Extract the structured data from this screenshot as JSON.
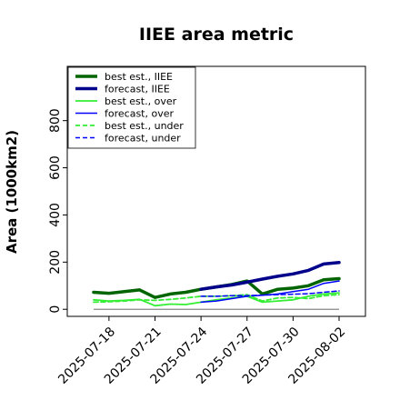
{
  "chart_data": {
    "type": "line",
    "title": "IIEE area metric",
    "xlabel": "",
    "ylabel": "Area (1000km2)",
    "ylim": [
      -30,
      1030
    ],
    "yticks": [
      0,
      200,
      400,
      600,
      800
    ],
    "x": [
      "2025-07-17",
      "2025-07-18",
      "2025-07-19",
      "2025-07-20",
      "2025-07-21",
      "2025-07-22",
      "2025-07-23",
      "2025-07-24",
      "2025-07-25",
      "2025-07-26",
      "2025-07-27",
      "2025-07-28",
      "2025-07-29",
      "2025-07-30",
      "2025-07-31",
      "2025-08-01",
      "2025-08-02"
    ],
    "xticks": [
      {
        "label": "2025-07-18",
        "color": "#000000"
      },
      {
        "label": "2025-07-21",
        "color": "#000000"
      },
      {
        "label": "2025-07-24",
        "color": "#2a8a2a"
      },
      {
        "label": "2025-07-27",
        "color": "#000000"
      },
      {
        "label": "2025-07-30",
        "color": "#000000"
      },
      {
        "label": "2025-08-02",
        "color": "#000000"
      }
    ],
    "zero_line": true,
    "legend_position": "top-left",
    "series": [
      {
        "name": "best est., IIEE",
        "color": "#006400",
        "style": "solid",
        "width": 3.5,
        "x": [
          "2025-07-17",
          "2025-07-18",
          "2025-07-19",
          "2025-07-20",
          "2025-07-21",
          "2025-07-22",
          "2025-07-23",
          "2025-07-24",
          "2025-07-25",
          "2025-07-26",
          "2025-07-27",
          "2025-07-28",
          "2025-07-29",
          "2025-07-30",
          "2025-07-31",
          "2025-08-01",
          "2025-08-02"
        ],
        "values": [
          72,
          68,
          75,
          82,
          50,
          65,
          72,
          85,
          95,
          105,
          120,
          65,
          85,
          90,
          100,
          125,
          130
        ]
      },
      {
        "name": "forecast, IIEE",
        "color": "#00008b",
        "style": "solid",
        "width": 3.5,
        "x": [
          "2025-07-24",
          "2025-07-25",
          "2025-07-26",
          "2025-07-27",
          "2025-07-28",
          "2025-07-29",
          "2025-07-30",
          "2025-07-31",
          "2025-08-01",
          "2025-08-02"
        ],
        "values": [
          85,
          95,
          103,
          115,
          128,
          140,
          150,
          165,
          192,
          198
        ]
      },
      {
        "name": "best est., over",
        "color": "#33ee33",
        "style": "solid",
        "width": 1.8,
        "x": [
          "2025-07-17",
          "2025-07-18",
          "2025-07-19",
          "2025-07-20",
          "2025-07-21",
          "2025-07-22",
          "2025-07-23",
          "2025-07-24",
          "2025-07-25",
          "2025-07-26",
          "2025-07-27",
          "2025-07-28",
          "2025-07-29",
          "2025-07-30",
          "2025-07-31",
          "2025-08-01",
          "2025-08-02"
        ],
        "values": [
          40,
          35,
          38,
          42,
          15,
          22,
          20,
          30,
          40,
          48,
          55,
          30,
          35,
          40,
          55,
          65,
          70
        ]
      },
      {
        "name": "forecast, over",
        "color": "#0000ff",
        "style": "solid",
        "width": 1.5,
        "x": [
          "2025-07-24",
          "2025-07-25",
          "2025-07-26",
          "2025-07-27",
          "2025-07-28",
          "2025-07-29",
          "2025-07-30",
          "2025-07-31",
          "2025-08-01",
          "2025-08-02"
        ],
        "values": [
          30,
          35,
          45,
          55,
          60,
          65,
          75,
          85,
          110,
          120
        ]
      },
      {
        "name": "best est., under",
        "color": "#33ee33",
        "style": "dashed",
        "width": 1.8,
        "x": [
          "2025-07-17",
          "2025-07-18",
          "2025-07-19",
          "2025-07-20",
          "2025-07-21",
          "2025-07-22",
          "2025-07-23",
          "2025-07-24",
          "2025-07-25",
          "2025-07-26",
          "2025-07-27",
          "2025-07-28",
          "2025-07-29",
          "2025-07-30",
          "2025-07-31",
          "2025-08-01",
          "2025-08-02"
        ],
        "values": [
          30,
          32,
          35,
          40,
          38,
          42,
          48,
          55,
          55,
          57,
          62,
          35,
          48,
          50,
          45,
          58,
          62
        ]
      },
      {
        "name": "forecast, under",
        "color": "#0000ff",
        "style": "dashed",
        "width": 1.5,
        "x": [
          "2025-07-24",
          "2025-07-25",
          "2025-07-26",
          "2025-07-27",
          "2025-07-28",
          "2025-07-29",
          "2025-07-30",
          "2025-07-31",
          "2025-08-01",
          "2025-08-02"
        ],
        "values": [
          55,
          55,
          58,
          58,
          60,
          62,
          64,
          66,
          72,
          78
        ]
      }
    ]
  }
}
